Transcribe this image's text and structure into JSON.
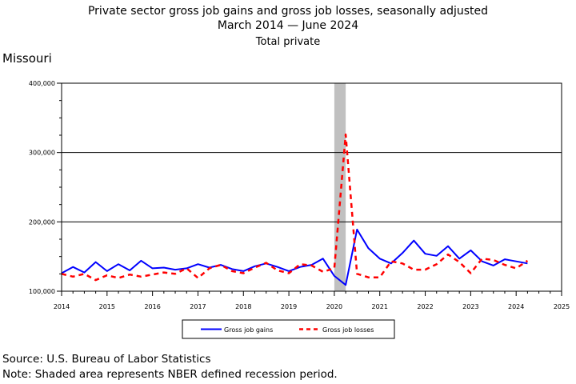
{
  "title_line1": "Private sector gross job gains and gross job losses, seasonally adjusted",
  "title_line2": "March 2014 — June 2024",
  "title_line3": "Total private",
  "region": "Missouri",
  "source": "Source: U.S. Bureau of Labor Statistics",
  "note": "Note: Shaded area represents NBER defined recession period.",
  "chart_data": {
    "type": "line",
    "x_ticks": [
      "2014",
      "2015",
      "2016",
      "2017",
      "2018",
      "2019",
      "2020",
      "2021",
      "2022",
      "2023",
      "2024",
      "2025"
    ],
    "y_ticks": [
      "100,000",
      "200,000",
      "300,000",
      "400,000"
    ],
    "ylim": [
      100000,
      400000
    ],
    "xlim": [
      2014,
      2025
    ],
    "grid": "horizontal",
    "legend_position": "bottom",
    "recession": {
      "start": 2020.0,
      "end": 2020.25
    },
    "x": [
      2014.0,
      2014.25,
      2014.5,
      2014.75,
      2015.0,
      2015.25,
      2015.5,
      2015.75,
      2016.0,
      2016.25,
      2016.5,
      2016.75,
      2017.0,
      2017.25,
      2017.5,
      2017.75,
      2018.0,
      2018.25,
      2018.5,
      2018.75,
      2019.0,
      2019.25,
      2019.5,
      2019.75,
      2020.0,
      2020.25,
      2020.5,
      2020.75,
      2021.0,
      2021.25,
      2021.5,
      2021.75,
      2022.0,
      2022.25,
      2022.5,
      2022.75,
      2023.0,
      2023.25,
      2023.5,
      2023.75,
      2024.0,
      2024.25
    ],
    "series": [
      {
        "name": "Gross job gains",
        "color": "#0000ff",
        "dash": "solid",
        "values": [
          126000,
          135000,
          127000,
          142000,
          129000,
          139000,
          130000,
          144000,
          133000,
          134000,
          131000,
          133000,
          139000,
          134000,
          138000,
          132000,
          129000,
          136000,
          140000,
          135000,
          129000,
          135000,
          138000,
          147000,
          122000,
          109000,
          189000,
          162000,
          147000,
          140000,
          155000,
          173000,
          154000,
          151000,
          165000,
          147000,
          159000,
          143000,
          137000,
          146000,
          143000,
          140000
        ]
      },
      {
        "name": "Gross job losses",
        "color": "#ff0000",
        "dash": "dashed",
        "values": [
          125000,
          121000,
          125000,
          116000,
          123000,
          119000,
          124000,
          121000,
          124000,
          127000,
          125000,
          133000,
          119000,
          133000,
          138000,
          129000,
          126000,
          134000,
          141000,
          130000,
          126000,
          139000,
          137000,
          128000,
          133000,
          326000,
          125000,
          120000,
          120000,
          143000,
          140000,
          131000,
          131000,
          139000,
          153000,
          142000,
          126000,
          147000,
          145000,
          138000,
          133000,
          144000
        ]
      }
    ]
  }
}
